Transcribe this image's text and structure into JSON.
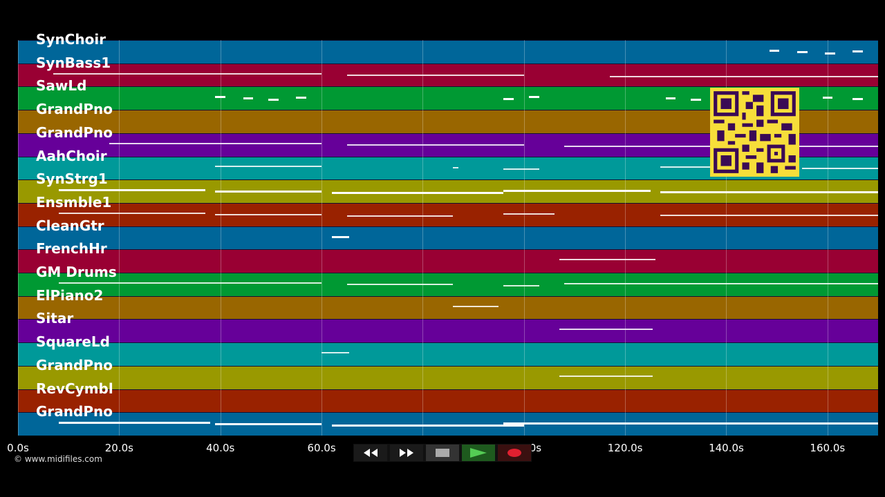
{
  "tracks": [
    {
      "name": "SynChoir",
      "color": "#006699"
    },
    {
      "name": "SynBass1",
      "color": "#990033"
    },
    {
      "name": "SawLd",
      "color": "#009933"
    },
    {
      "name": "GrandPno",
      "color": "#996600"
    },
    {
      "name": "GrandPno",
      "color": "#660099"
    },
    {
      "name": "AahChoir",
      "color": "#009999"
    },
    {
      "name": "SynStrg1",
      "color": "#999900"
    },
    {
      "name": "Ensmble1",
      "color": "#992200"
    },
    {
      "name": "CleanGtr",
      "color": "#006699"
    },
    {
      "name": "FrenchHr",
      "color": "#990033"
    },
    {
      "name": "GM Drums",
      "color": "#009933"
    },
    {
      "name": "ElPiano2",
      "color": "#996600"
    },
    {
      "name": "Sitar",
      "color": "#660099"
    },
    {
      "name": "SquareLd",
      "color": "#009999"
    },
    {
      "name": "GrandPno",
      "color": "#999900"
    },
    {
      "name": "RevCymbl",
      "color": "#992200"
    },
    {
      "name": "GrandPno",
      "color": "#006699"
    }
  ],
  "timeline": {
    "ticks": [
      "0.0s",
      "20.0s",
      "40.0s",
      "60.0s",
      "80.0s",
      "100.0s",
      "120.0s",
      "140.0s",
      "160.0s"
    ],
    "max_seconds": 170
  },
  "transport": {
    "rewind_icon": "rewind-icon",
    "forward_icon": "fast-forward-icon",
    "stop_icon": "stop-icon",
    "play_icon": "play-icon",
    "record_icon": "record-icon"
  },
  "copyright": "© www.midifiles.com",
  "notes": [
    {
      "track": 0,
      "segs": [
        [
          148.5,
          150.5
        ],
        [
          154,
          156
        ],
        [
          159.5,
          161.5
        ],
        [
          165,
          167
        ]
      ],
      "bold": true
    },
    {
      "track": 1,
      "segs": [
        [
          7,
          60
        ],
        [
          65,
          100
        ],
        [
          117,
          170
        ]
      ]
    },
    {
      "track": 2,
      "segs": [
        [
          39,
          41
        ],
        [
          44.5,
          46.5
        ],
        [
          49.5,
          51.5
        ],
        [
          55,
          57
        ],
        [
          96,
          98
        ],
        [
          101,
          103
        ],
        [
          128,
          130
        ],
        [
          133,
          135
        ],
        [
          159,
          161
        ],
        [
          165,
          167
        ]
      ],
      "bold": true
    },
    {
      "track": 4,
      "segs": [
        [
          18,
          60
        ],
        [
          65,
          100
        ],
        [
          108,
          170
        ]
      ]
    },
    {
      "track": 5,
      "segs": [
        [
          39,
          60
        ],
        [
          86,
          87
        ],
        [
          96,
          103
        ],
        [
          127,
          137
        ],
        [
          155,
          170
        ]
      ]
    },
    {
      "track": 6,
      "segs": [
        [
          8,
          37
        ],
        [
          39,
          60
        ],
        [
          62,
          96
        ],
        [
          96,
          125
        ],
        [
          127,
          170
        ]
      ],
      "bold": true
    },
    {
      "track": 7,
      "segs": [
        [
          8,
          37
        ],
        [
          39,
          60
        ],
        [
          65,
          86
        ],
        [
          96,
          106
        ],
        [
          127,
          170
        ]
      ]
    },
    {
      "track": 8,
      "segs": [
        [
          62,
          65.5
        ]
      ],
      "bold": true
    },
    {
      "track": 9,
      "segs": [
        [
          107,
          126
        ]
      ]
    },
    {
      "track": 10,
      "segs": [
        [
          8,
          60
        ],
        [
          65,
          86
        ],
        [
          96,
          103
        ],
        [
          108,
          170
        ]
      ]
    },
    {
      "track": 11,
      "segs": [
        [
          86,
          95
        ]
      ]
    },
    {
      "track": 12,
      "segs": [
        [
          107,
          125.5
        ]
      ]
    },
    {
      "track": 13,
      "segs": [
        [
          60,
          65.5
        ]
      ]
    },
    {
      "track": 14,
      "segs": [
        [
          107,
          125.5
        ]
      ]
    },
    {
      "track": 16,
      "segs": [
        [
          8,
          38
        ],
        [
          39,
          60
        ],
        [
          62,
          100
        ],
        [
          96,
          170
        ]
      ],
      "bold": true
    }
  ]
}
